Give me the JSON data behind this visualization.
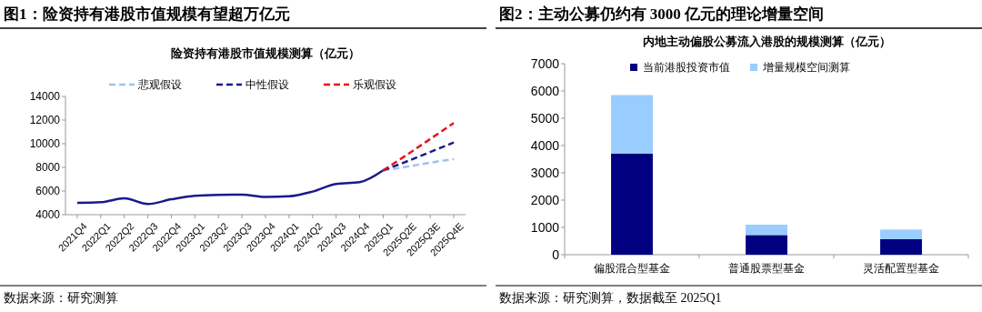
{
  "chart_data": [
    {
      "type": "line",
      "title": "图1：险资持有港股市值规模有望超万亿元",
      "subtitle": "险资持有港股市值规模测算（亿元）",
      "categories": [
        "2021Q4",
        "2022Q1",
        "2022Q2",
        "2022Q3",
        "2022Q4",
        "2023Q1",
        "2023Q2",
        "2023Q3",
        "2023Q4",
        "2024Q1",
        "2024Q2",
        "2024Q3",
        "2024Q4",
        "2025Q1",
        "2025Q2E",
        "2025Q3E",
        "2025Q4E"
      ],
      "series": [
        {
          "color": "#1a1a8c",
          "line_style": "solid",
          "values": [
            5000,
            5050,
            5380,
            4900,
            5300,
            5600,
            5680,
            5700,
            5500,
            5550,
            5950,
            6600,
            6750,
            7750,
            null,
            null,
            null
          ]
        },
        {
          "name": "悲观假设",
          "color": "#9dc3f0",
          "line_style": "dashed",
          "values": [
            null,
            null,
            null,
            null,
            null,
            null,
            null,
            null,
            null,
            null,
            null,
            null,
            null,
            7750,
            8050,
            8400,
            8700
          ]
        },
        {
          "name": "中性假设",
          "color": "#1a1a8c",
          "line_style": "dashed",
          "values": [
            null,
            null,
            null,
            null,
            null,
            null,
            null,
            null,
            null,
            null,
            null,
            null,
            null,
            7750,
            8500,
            9300,
            10100
          ]
        },
        {
          "name": "乐观假设",
          "color": "#e8141b",
          "line_style": "dashed",
          "values": [
            null,
            null,
            null,
            null,
            null,
            null,
            null,
            null,
            null,
            null,
            null,
            null,
            null,
            7750,
            9050,
            10400,
            11750
          ]
        }
      ],
      "ylim": [
        4000,
        14000
      ],
      "yticks": [
        4000,
        6000,
        8000,
        10000,
        12000,
        14000
      ],
      "legend": "top",
      "grid": false,
      "annotations": [
        "数据来源：研究测算"
      ]
    },
    {
      "type": "bar",
      "stacked": true,
      "title": "图2：主动公募仍约有 3000 亿元的理论增量空间",
      "subtitle": "内地主动偏股公募流入港股的规模测算（亿元）",
      "categories": [
        "偏股混合型基金",
        "普通股票型基金",
        "灵活配置型基金"
      ],
      "series": [
        {
          "name": "当前港股投资市值",
          "color": "#000080",
          "values": [
            3700,
            720,
            570
          ]
        },
        {
          "name": "增量规模空间测算",
          "color": "#99ccff",
          "values": [
            2150,
            380,
            350
          ]
        }
      ],
      "ylim": [
        0,
        7000
      ],
      "yticks": [
        0,
        1000,
        2000,
        3000,
        4000,
        5000,
        6000,
        7000
      ],
      "legend": "top",
      "grid": false,
      "annotations": [
        "数据来源：研究测算，数据截至 2025Q1"
      ]
    }
  ]
}
